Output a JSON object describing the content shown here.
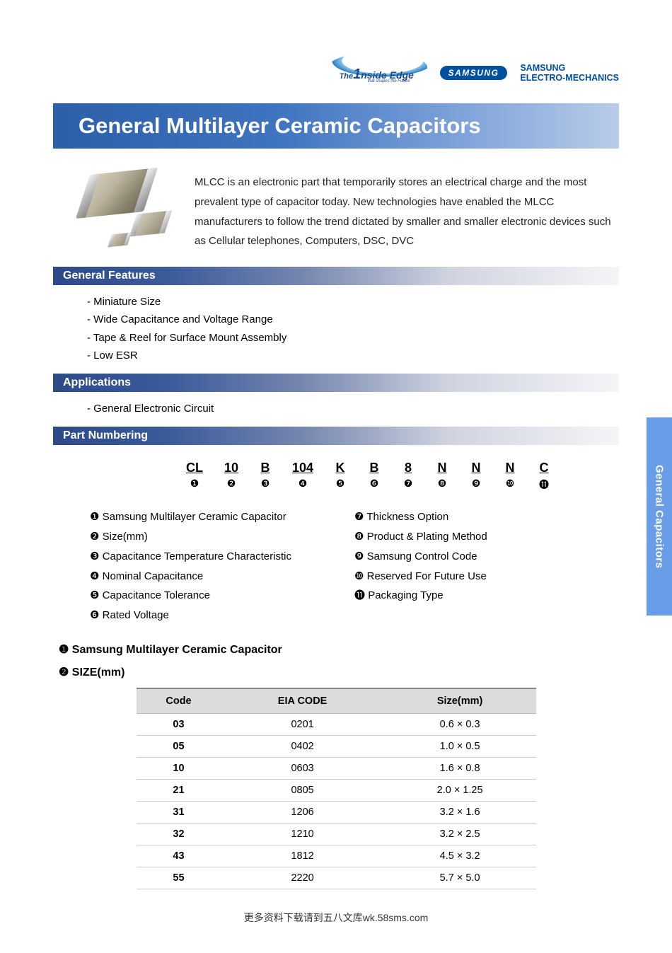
{
  "logos": {
    "inside_prefix": "The",
    "inside_main": "1nside Edge",
    "inside_sub": "that shapes the Future",
    "samsung": "SAMSUNG",
    "sem_line1": "SAMSUNG",
    "sem_line2": "ELECTRO-MECHANICS"
  },
  "title": "General Multilayer Ceramic Capacitors",
  "intro": "MLCC is an electronic part that temporarily stores an electrical charge and  the most prevalent type of capacitor today.  New technologies have enabled the MLCC manufacturers to   follow the trend dictated by smaller and smaller electronic devices   such as Cellular telephones, Computers, DSC, DVC",
  "side_tab": "General Capacitors",
  "sections": {
    "features": {
      "title": "General Features",
      "items": [
        "- Miniature Size",
        "- Wide Capacitance and Voltage Range",
        "- Tape & Reel for Surface Mount Assembly",
        "- Low ESR"
      ]
    },
    "applications": {
      "title": "Applications",
      "items": [
        "- General Electronic Circuit"
      ]
    },
    "part_numbering": {
      "title": "Part Numbering",
      "codes": [
        "CL",
        "10",
        "B",
        "104",
        "K",
        "B",
        "8",
        "N",
        "N",
        "N",
        "C"
      ],
      "nums": [
        "❶",
        "❷",
        "❸",
        "❹",
        "❺",
        "❻",
        "❼",
        "❽",
        "❾",
        "❿",
        "⓫"
      ],
      "legend_left": [
        {
          "n": "❶",
          "t": "Samsung  Multilayer Ceramic Capacitor"
        },
        {
          "n": "❷",
          "t": "Size(mm)"
        },
        {
          "n": "❸",
          "t": "Capacitance Temperature Characteristic"
        },
        {
          "n": "❹",
          "t": "Nominal Capacitance"
        },
        {
          "n": "❺",
          "t": "Capacitance Tolerance"
        },
        {
          "n": "❻",
          "t": "Rated Voltage"
        }
      ],
      "legend_right": [
        {
          "n": "❼",
          "t": "Thickness Option"
        },
        {
          "n": "❽",
          "t": "Product & Plating Method"
        },
        {
          "n": "❾",
          "t": "Samsung Control Code"
        },
        {
          "n": "❿",
          "t": "Reserved For Future Use"
        },
        {
          "n": "⓫",
          "t": "Packaging Type"
        }
      ]
    }
  },
  "subheadings": {
    "h1": "Samsung Multilayer Ceramic Capacitor",
    "h2": "SIZE(mm)"
  },
  "size_table": {
    "headers": [
      "Code",
      "EIA  CODE",
      "Size(mm)"
    ],
    "rows": [
      [
        "03",
        "0201",
        "0.6  ×  0.3"
      ],
      [
        "05",
        "0402",
        "1.0  ×  0.5"
      ],
      [
        "10",
        "0603",
        "1.6  ×  0.8"
      ],
      [
        "21",
        "0805",
        "2.0   ×  1.25"
      ],
      [
        "31",
        "1206",
        "3.2  ×  1.6"
      ],
      [
        "32",
        "1210",
        "3.2  ×  2.5"
      ],
      [
        "43",
        "1812",
        "4.5  ×  3.2"
      ],
      [
        "55",
        "2220",
        "5.7  ×  5.0"
      ]
    ]
  },
  "footer": "更多资料下载请到五八文库wk.58sms.com",
  "colors": {
    "banner_start": "#2d5fa8",
    "banner_end": "#b8cce8",
    "section_start": "#2d4a88",
    "side_tab": "#6a9de8",
    "samsung_blue": "#0050a0",
    "table_header_bg": "#dcdcdc"
  }
}
